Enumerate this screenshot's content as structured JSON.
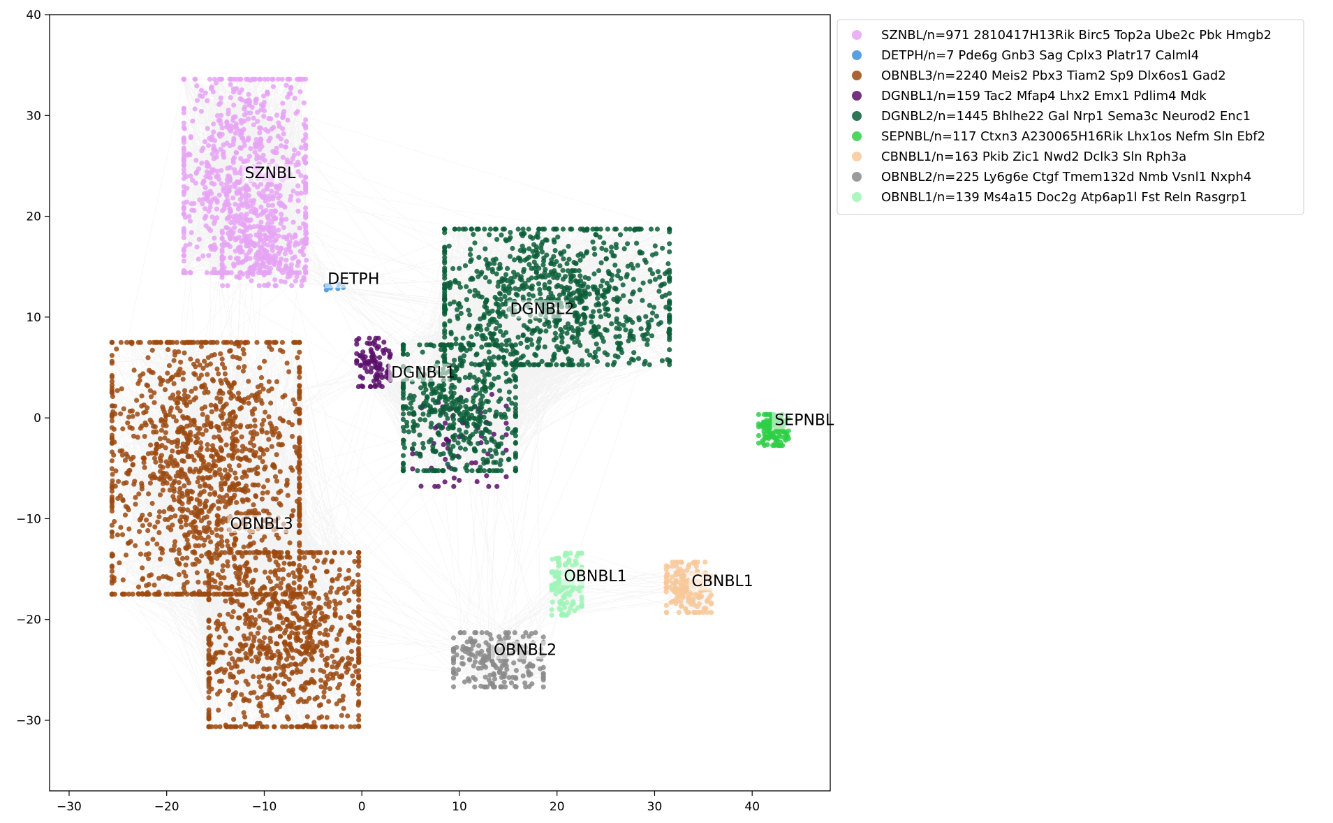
{
  "chart_data": {
    "type": "scatter",
    "title": "",
    "xlabel": "",
    "ylabel": "",
    "xlim": [
      -32,
      48
    ],
    "ylim": [
      -37,
      40
    ],
    "x_ticks": [
      -30,
      -20,
      -10,
      0,
      10,
      20,
      30,
      40
    ],
    "y_ticks": [
      -30,
      -20,
      -10,
      0,
      10,
      20,
      30,
      40
    ],
    "x_tick_labels": [
      "−30",
      "−20",
      "−10",
      "0",
      "10",
      "20",
      "30",
      "40"
    ],
    "y_tick_labels": [
      "−30",
      "−20",
      "−10",
      "0",
      "10",
      "20",
      "30",
      "40"
    ],
    "grid": false,
    "legend_position": "outside-top-right",
    "edge_color": "#9a9a9a",
    "clusters": [
      {
        "name": "SZNBL",
        "legend": "SZNBL/n=971 2810417H13Rik Birc5 Top2a Ube2c Pbk Hmgb2",
        "count": 971,
        "color": "#e6a3f5",
        "label_pos": [
          -12,
          24
        ],
        "regions": [
          {
            "cx": -12,
            "cy": 24,
            "rx": 6.5,
            "ry": 10,
            "w": 0.8
          },
          {
            "cx": -10,
            "cy": 16,
            "rx": 4.5,
            "ry": 3,
            "w": 0.2
          }
        ]
      },
      {
        "name": "DETPH",
        "legend": "DETPH/n=7 Pde6g Gnb3 Sag Cplx3 Platr17 Calml4",
        "count": 7,
        "color": "#3d8fdc",
        "label_pos": [
          -3.5,
          13.5
        ],
        "regions": [
          {
            "cx": -3,
            "cy": 12.8,
            "rx": 1.2,
            "ry": 0.6,
            "w": 1
          }
        ]
      },
      {
        "name": "OBNBL3",
        "legend": "OBNBL3/n=2240 Meis2 Pbx3 Tiam2 Sp9 Dlx6os1 Gad2",
        "count": 2240,
        "color": "#9c4a10",
        "label_pos": [
          -13.5,
          -10.8
        ],
        "regions": [
          {
            "cx": -16,
            "cy": -5,
            "rx": 10,
            "ry": 13,
            "w": 0.6
          },
          {
            "cx": -8,
            "cy": -22,
            "rx": 8,
            "ry": 9,
            "w": 0.4
          }
        ]
      },
      {
        "name": "DGNBL1",
        "legend": "DGNBL1/n=159 Tac2 Mfap4 Lhx2 Emx1 Pdlim4 Mdk",
        "count": 159,
        "color": "#5a0f6b",
        "label_pos": [
          3,
          4.2
        ],
        "regions": [
          {
            "cx": 1.2,
            "cy": 5.5,
            "rx": 1.8,
            "ry": 2.5,
            "w": 0.6
          },
          {
            "cx": 10,
            "cy": -2,
            "rx": 5,
            "ry": 5,
            "w": 0.4
          }
        ]
      },
      {
        "name": "DGNBL2",
        "legend": "DGNBL2/n=1445 Bhlhe22 Gal Nrp1 Sema3c Neurod2 Enc1",
        "count": 1445,
        "color": "#0b5e38",
        "label_pos": [
          15.2,
          10.5
        ],
        "regions": [
          {
            "cx": 20,
            "cy": 12,
            "rx": 12,
            "ry": 7,
            "w": 0.65
          },
          {
            "cx": 10,
            "cy": 1,
            "rx": 6,
            "ry": 6.5,
            "w": 0.35
          }
        ]
      },
      {
        "name": "SEPNBL",
        "legend": "SEPNBL/n=117 Ctxn3 A230065H16Rik Lhx1os Nefm Sln Ebf2",
        "count": 117,
        "color": "#2ecf45",
        "label_pos": [
          42.3,
          -0.5
        ],
        "regions": [
          {
            "cx": 42.2,
            "cy": -1.2,
            "rx": 1.6,
            "ry": 1.6,
            "w": 1
          }
        ]
      },
      {
        "name": "CBNBL1",
        "legend": "CBNBL1/n=163 Pkib Zic1 Nwd2 Dclk3 Sln Rph3a",
        "count": 163,
        "color": "#f8c898",
        "label_pos": [
          33.8,
          -16.5
        ],
        "regions": [
          {
            "cx": 33.5,
            "cy": -16.8,
            "rx": 2.4,
            "ry": 2.6,
            "w": 1
          }
        ]
      },
      {
        "name": "OBNBL2",
        "legend": "OBNBL2/n=225 Ly6g6e Ctgf Tmem132d Nmb Vsnl1 Nxph4",
        "count": 225,
        "color": "#8a8a8a",
        "label_pos": [
          13.5,
          -23.3
        ],
        "regions": [
          {
            "cx": 14,
            "cy": -24,
            "rx": 4.8,
            "ry": 2.8,
            "w": 1
          }
        ]
      },
      {
        "name": "OBNBL1",
        "legend": "OBNBL1/n=139 Ms4a15 Doc2g Atp6ap1l Fst Reln Rasgrp1",
        "count": 139,
        "color": "#9df5b6",
        "label_pos": [
          20.7,
          -16
        ],
        "regions": [
          {
            "cx": 21,
            "cy": -16.5,
            "rx": 1.6,
            "ry": 3.2,
            "w": 1
          }
        ]
      }
    ]
  }
}
